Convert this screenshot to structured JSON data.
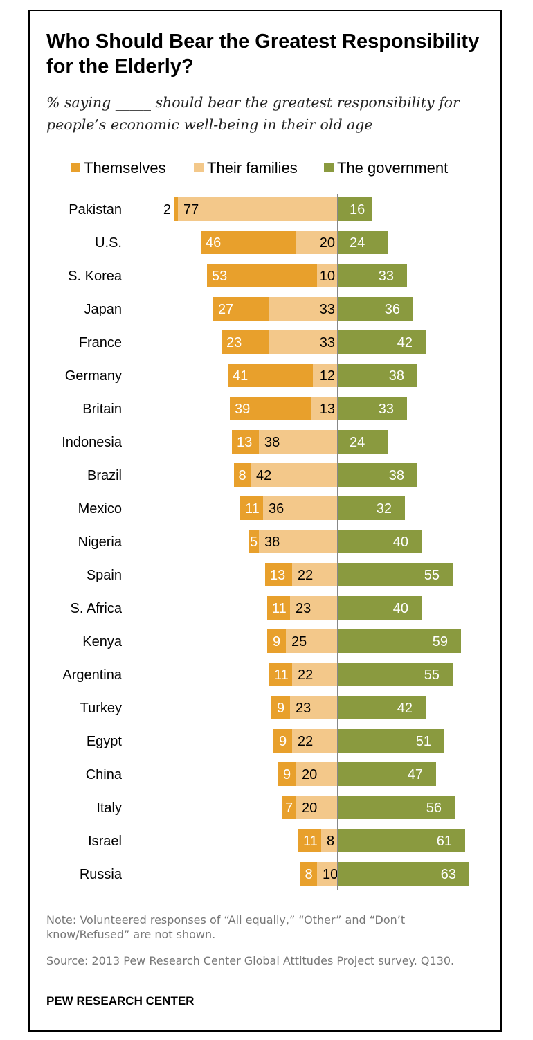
{
  "chart_data": {
    "type": "bar",
    "title": "Who Should Bear the Greatest Responsibility for the Elderly?",
    "subtitle": "% saying _____ should bear the greatest responsibility for people’s economic well-being in their old age",
    "categories": [
      "Pakistan",
      "U.S.",
      "S. Korea",
      "Japan",
      "France",
      "Germany",
      "Britain",
      "Indonesia",
      "Brazil",
      "Mexico",
      "Nigeria",
      "Spain",
      "S. Africa",
      "Kenya",
      "Argentina",
      "Turkey",
      "Egypt",
      "China",
      "Italy",
      "Israel",
      "Russia"
    ],
    "series": [
      {
        "name": "Themselves",
        "color": "#E8A02C",
        "values": [
          2,
          46,
          53,
          27,
          23,
          41,
          39,
          13,
          8,
          11,
          5,
          13,
          11,
          9,
          11,
          9,
          9,
          9,
          7,
          11,
          8
        ]
      },
      {
        "name": "Their families",
        "color": "#F3C88A",
        "values": [
          77,
          20,
          10,
          33,
          33,
          12,
          13,
          38,
          42,
          36,
          38,
          22,
          23,
          25,
          22,
          23,
          22,
          20,
          20,
          8,
          10
        ]
      },
      {
        "name": "The government",
        "color": "#8A9A3F",
        "values": [
          16,
          24,
          33,
          36,
          42,
          38,
          33,
          24,
          38,
          32,
          40,
          55,
          40,
          59,
          55,
          42,
          51,
          47,
          56,
          61,
          63
        ]
      }
    ],
    "legend": "top",
    "note": "Note: Volunteered responses of “All equally,” “Other” and “Don’t know/Refused” are not shown.",
    "source": "Source: 2013 Pew Research Center Global Attitudes Project survey. Q130.",
    "brand": "PEW RESEARCH CENTER"
  }
}
